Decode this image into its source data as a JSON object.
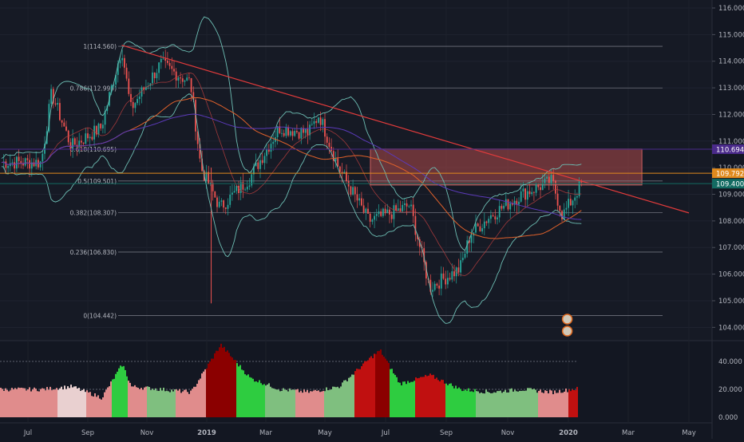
{
  "chart_data": {
    "type": "candlestick",
    "x_ticks": [
      "Jul",
      "Sep",
      "Nov",
      "2019",
      "Mar",
      "May",
      "Jul",
      "Sep",
      "Nov",
      "2020",
      "Mar",
      "May"
    ],
    "price_axis": {
      "range": [
        103.5,
        116.3
      ],
      "ticks": [
        "116.000",
        "115.000",
        "114.000",
        "113.000",
        "112.000",
        "111.000",
        "110.000",
        "109.000",
        "108.000",
        "107.000",
        "106.000",
        "105.000",
        "104.000"
      ]
    },
    "price_labels": [
      {
        "text": "110.694",
        "value": 110.694,
        "color": "#4a2a8a"
      },
      {
        "text": "109.792",
        "value": 109.792,
        "color": "#e08a1e"
      },
      {
        "text": "109.400",
        "value": 109.4,
        "color": "#136b62"
      }
    ],
    "fibonacci": [
      {
        "label": "1(114.560)",
        "value": 114.56
      },
      {
        "label": "0.786(112.995)",
        "value": 112.995
      },
      {
        "label": "0.618(110.695)",
        "value": 110.695
      },
      {
        "label": "0.5(109.501)",
        "value": 109.501
      },
      {
        "label": "0.382(108.307)",
        "value": 108.307
      },
      {
        "label": "0.236(106.830)",
        "value": 106.83
      },
      {
        "label": "0(104.442)",
        "value": 104.442
      }
    ],
    "resistance_zone": {
      "from": "mid-Jun 2019",
      "to": "Mar 2020",
      "low": 109.35,
      "high": 110.7,
      "color": "#b04a4a"
    },
    "trendline": {
      "start": [
        "early Oct 2018",
        114.6
      ],
      "end": [
        "May 2020",
        108.3
      ],
      "color": "#e23b3b"
    },
    "price_path": [
      {
        "t": "Jul 2018",
        "v": 110.2
      },
      {
        "t": "late Jul 2018",
        "v": 112.8
      },
      {
        "t": "Aug 2018",
        "v": 110.8
      },
      {
        "t": "Sep 2018",
        "v": 111.5
      },
      {
        "t": "early Oct 2018",
        "v": 114.5
      },
      {
        "t": "Oct 2018",
        "v": 112.2
      },
      {
        "t": "Nov 2018",
        "v": 113.9
      },
      {
        "t": "Dec 2018",
        "v": 113.2
      },
      {
        "t": "late Dec 2018",
        "v": 110.0
      },
      {
        "t": "Jan 2019",
        "v": 108.5
      },
      {
        "t": "Feb 2019",
        "v": 109.6
      },
      {
        "t": "Mar 2019",
        "v": 111.5
      },
      {
        "t": "Apr 2019",
        "v": 111.3
      },
      {
        "t": "late Apr 2019",
        "v": 112.0
      },
      {
        "t": "May 2019",
        "v": 110.0
      },
      {
        "t": "Jun 2019",
        "v": 108.0
      },
      {
        "t": "Jul 2019",
        "v": 108.4
      },
      {
        "t": "late Jul 2019",
        "v": 108.6
      },
      {
        "t": "Aug 2019",
        "v": 105.5
      },
      {
        "t": "Sep 2019",
        "v": 106.2
      },
      {
        "t": "late Sep 2019",
        "v": 107.5
      },
      {
        "t": "Oct 2019",
        "v": 108.2
      },
      {
        "t": "Nov 2019",
        "v": 109.0
      },
      {
        "t": "Dec 2019",
        "v": 109.5
      },
      {
        "t": "late Dec 2019",
        "v": 108.2
      },
      {
        "t": "Jan 2020",
        "v": 109.4
      }
    ],
    "oscillator": {
      "ticks": [
        "40.000",
        "20.000",
        "0.000"
      ],
      "range": [
        0,
        52
      ],
      "reference_lines": [
        40,
        20
      ],
      "samples_approx": [
        {
          "t": "Jul 2018",
          "v": 20,
          "c": "#e08c8c"
        },
        {
          "t": "Aug 2018",
          "v": 22,
          "c": "#e9d0d0"
        },
        {
          "t": "Sep 2018",
          "v": 14,
          "c": "#e08c8c"
        },
        {
          "t": "early Oct 2018",
          "v": 38,
          "c": "#2ecc40"
        },
        {
          "t": "Oct 2018",
          "v": 22,
          "c": "#e08c8c"
        },
        {
          "t": "Nov 2018",
          "v": 20,
          "c": "#7fbf7f"
        },
        {
          "t": "Dec 2018",
          "v": 18,
          "c": "#e08c8c"
        },
        {
          "t": "Jan 2019",
          "v": 52,
          "c": "#8b0000"
        },
        {
          "t": "Feb 2019",
          "v": 28,
          "c": "#2ecc40"
        },
        {
          "t": "Mar 2019",
          "v": 20,
          "c": "#7fbf7f"
        },
        {
          "t": "Apr 2019",
          "v": 18,
          "c": "#e08c8c"
        },
        {
          "t": "May 2019",
          "v": 22,
          "c": "#7fbf7f"
        },
        {
          "t": "Jun 2019",
          "v": 42,
          "c": "#c01010"
        },
        {
          "t": "late Jun 2019",
          "v": 48,
          "c": "#8b0000"
        },
        {
          "t": "Jul 2019",
          "v": 24,
          "c": "#2ecc40"
        },
        {
          "t": "Aug 2019",
          "v": 30,
          "c": "#c01010"
        },
        {
          "t": "Sep 2019",
          "v": 20,
          "c": "#2ecc40"
        },
        {
          "t": "Oct 2019",
          "v": 18,
          "c": "#7fbf7f"
        },
        {
          "t": "Nov 2019",
          "v": 20,
          "c": "#7fbf7f"
        },
        {
          "t": "Dec 2019",
          "v": 18,
          "c": "#e08c8c"
        },
        {
          "t": "Jan 2020",
          "v": 21,
          "c": "#c01010"
        }
      ]
    },
    "colors": {
      "background": "#131722",
      "up": "#26a69a",
      "down": "#ef5350",
      "bollinger": "#6dbdb3",
      "sma": "#e0612b",
      "long_ma": "#5b3ab8",
      "fib": "#787b86",
      "text": "#b2b5be"
    }
  }
}
